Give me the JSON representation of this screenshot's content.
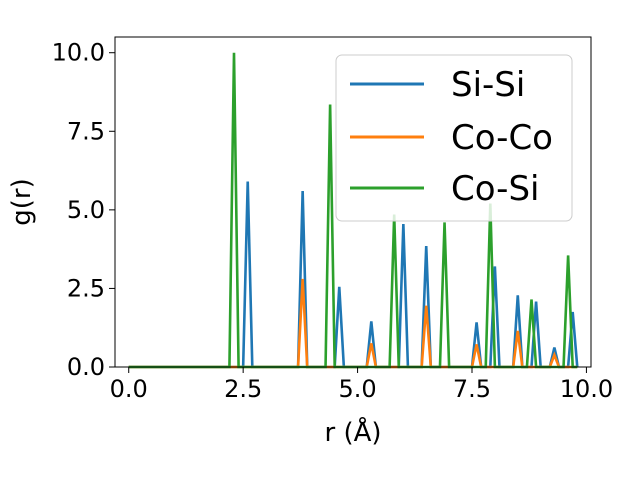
{
  "chart_data": {
    "type": "line",
    "xlabel": "r (Å)",
    "ylabel": "g(r)",
    "xlim": [
      -0.3,
      10.1
    ],
    "ylim": [
      0.0,
      10.5
    ],
    "xticks": [
      0.0,
      2.5,
      5.0,
      7.5,
      10.0
    ],
    "xtick_labels": [
      "0.0",
      "2.5",
      "5.0",
      "7.5",
      "10.0"
    ],
    "yticks": [
      0.0,
      2.5,
      5.0,
      7.5,
      10.0
    ],
    "ytick_labels": [
      "0.0",
      "2.5",
      "5.0",
      "7.5",
      "10.0"
    ],
    "grid": false,
    "legend_position": "upper right",
    "series": [
      {
        "name": "Si-Si",
        "color": "#1f77b4",
        "x": [
          0,
          2.5,
          2.6,
          2.7,
          3.7,
          3.8,
          3.9,
          4.5,
          4.6,
          4.7,
          5.2,
          5.3,
          5.4,
          5.9,
          6.0,
          6.1,
          6.4,
          6.5,
          6.6,
          7.5,
          7.6,
          7.7,
          7.9,
          8.0,
          8.1,
          8.4,
          8.5,
          8.6,
          8.8,
          8.9,
          9.0,
          9.2,
          9.3,
          9.4,
          9.6,
          9.7,
          9.8
        ],
        "y": [
          0,
          0,
          5.9,
          0,
          0,
          5.6,
          0,
          0,
          2.55,
          0,
          0,
          1.45,
          0,
          0,
          4.55,
          0,
          0,
          3.85,
          0,
          0,
          1.42,
          0,
          0,
          3.2,
          0,
          0,
          2.28,
          0,
          0,
          2.08,
          0,
          0,
          0.62,
          0,
          0,
          1.75,
          0
        ]
      },
      {
        "name": "Co-Co",
        "color": "#ff7f0e",
        "x": [
          0,
          3.7,
          3.8,
          3.9,
          5.2,
          5.3,
          5.4,
          6.4,
          6.5,
          6.6,
          7.5,
          7.6,
          7.7,
          8.4,
          8.5,
          8.6,
          9.2,
          9.3,
          9.4,
          9.8
        ],
        "y": [
          0,
          0,
          2.8,
          0,
          0,
          0.75,
          0,
          0,
          1.95,
          0,
          0,
          0.72,
          0,
          0,
          1.15,
          0,
          0,
          0.38,
          0,
          0
        ]
      },
      {
        "name": "Co-Si",
        "color": "#2ca02c",
        "x": [
          0,
          2.2,
          2.3,
          2.4,
          4.3,
          4.4,
          4.5,
          5.7,
          5.8,
          5.9,
          6.8,
          6.9,
          7.0,
          7.8,
          7.9,
          8.0,
          8.7,
          8.8,
          8.9,
          9.5,
          9.6,
          9.7,
          9.8
        ],
        "y": [
          0,
          0,
          10.0,
          0,
          0,
          8.35,
          0,
          0,
          4.85,
          0,
          0,
          4.6,
          0,
          0,
          5.2,
          0,
          0,
          2.15,
          0,
          0,
          3.55,
          0,
          0
        ]
      }
    ]
  }
}
